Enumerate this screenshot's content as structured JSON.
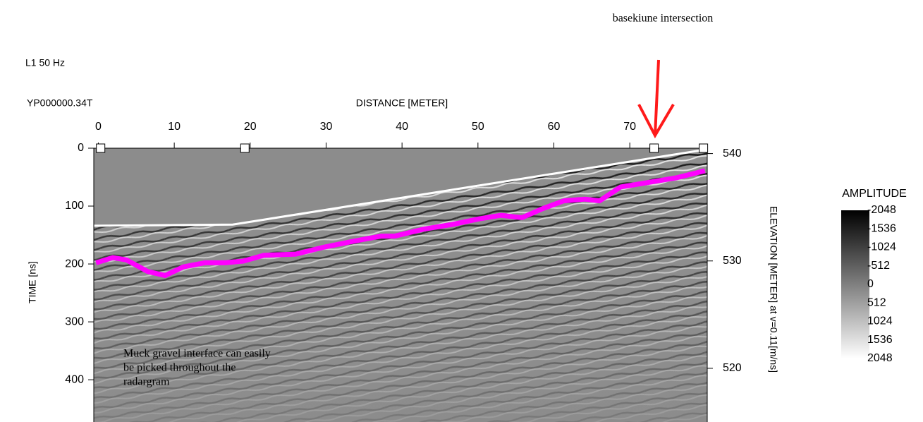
{
  "chart_data": {
    "type": "radargram",
    "title": "L1 50 Hz",
    "file_label": "YP000000.34T",
    "annotation_top": "basekiune intersection",
    "annotation_lines": [
      "Muck gravel interface can easily",
      "be picked throughout the",
      "radargram"
    ],
    "xlabel": "DISTANCE [METER]",
    "ylabel": "TIME [ns]",
    "y2label": "ELEVATION [METER] at v=0.11[m/ns]",
    "xlim": [
      -0.6,
      80.2
    ],
    "xticks": [
      0,
      10,
      20,
      30,
      40,
      50,
      60,
      70
    ],
    "ylim": [
      0,
      473
    ],
    "yticks": [
      0,
      100,
      200,
      300,
      400
    ],
    "y2lim": [
      515,
      540.5
    ],
    "y2ticks": [
      520,
      530,
      540
    ],
    "markers": [
      0.3,
      19.3,
      73.2,
      79.7
    ],
    "surface": {
      "color": "#ffffff",
      "x": [
        -0.6,
        17.7,
        80.2
      ],
      "values": [
        134,
        132,
        2
      ]
    },
    "series": [
      {
        "color": "#ff00ff",
        "x": [
          -0.3,
          1.9,
          3.7,
          6.5,
          8.8,
          11.2,
          14.0,
          16.7,
          19.1,
          21.8,
          26.0,
          29.7,
          33.5,
          37.2,
          39.0,
          42.8,
          46.5,
          50.2,
          53.0,
          55.8,
          58.6,
          61.3,
          64.1,
          66.0,
          68.8,
          72.5,
          76.2,
          79.9
        ],
        "values": [
          198,
          189,
          193,
          213,
          220,
          205,
          198,
          198,
          195,
          185,
          183,
          171,
          161,
          152,
          152,
          140,
          132,
          122,
          116,
          120,
          104,
          91,
          88,
          91,
          67,
          59,
          51,
          39
        ]
      }
    ],
    "colorbar": {
      "label": "AMPLITUDE",
      "lim": [
        -2048,
        2048
      ],
      "ticks": [
        -2048,
        -1536,
        -1024,
        -512,
        0,
        512,
        1024,
        1536,
        2048
      ]
    }
  }
}
